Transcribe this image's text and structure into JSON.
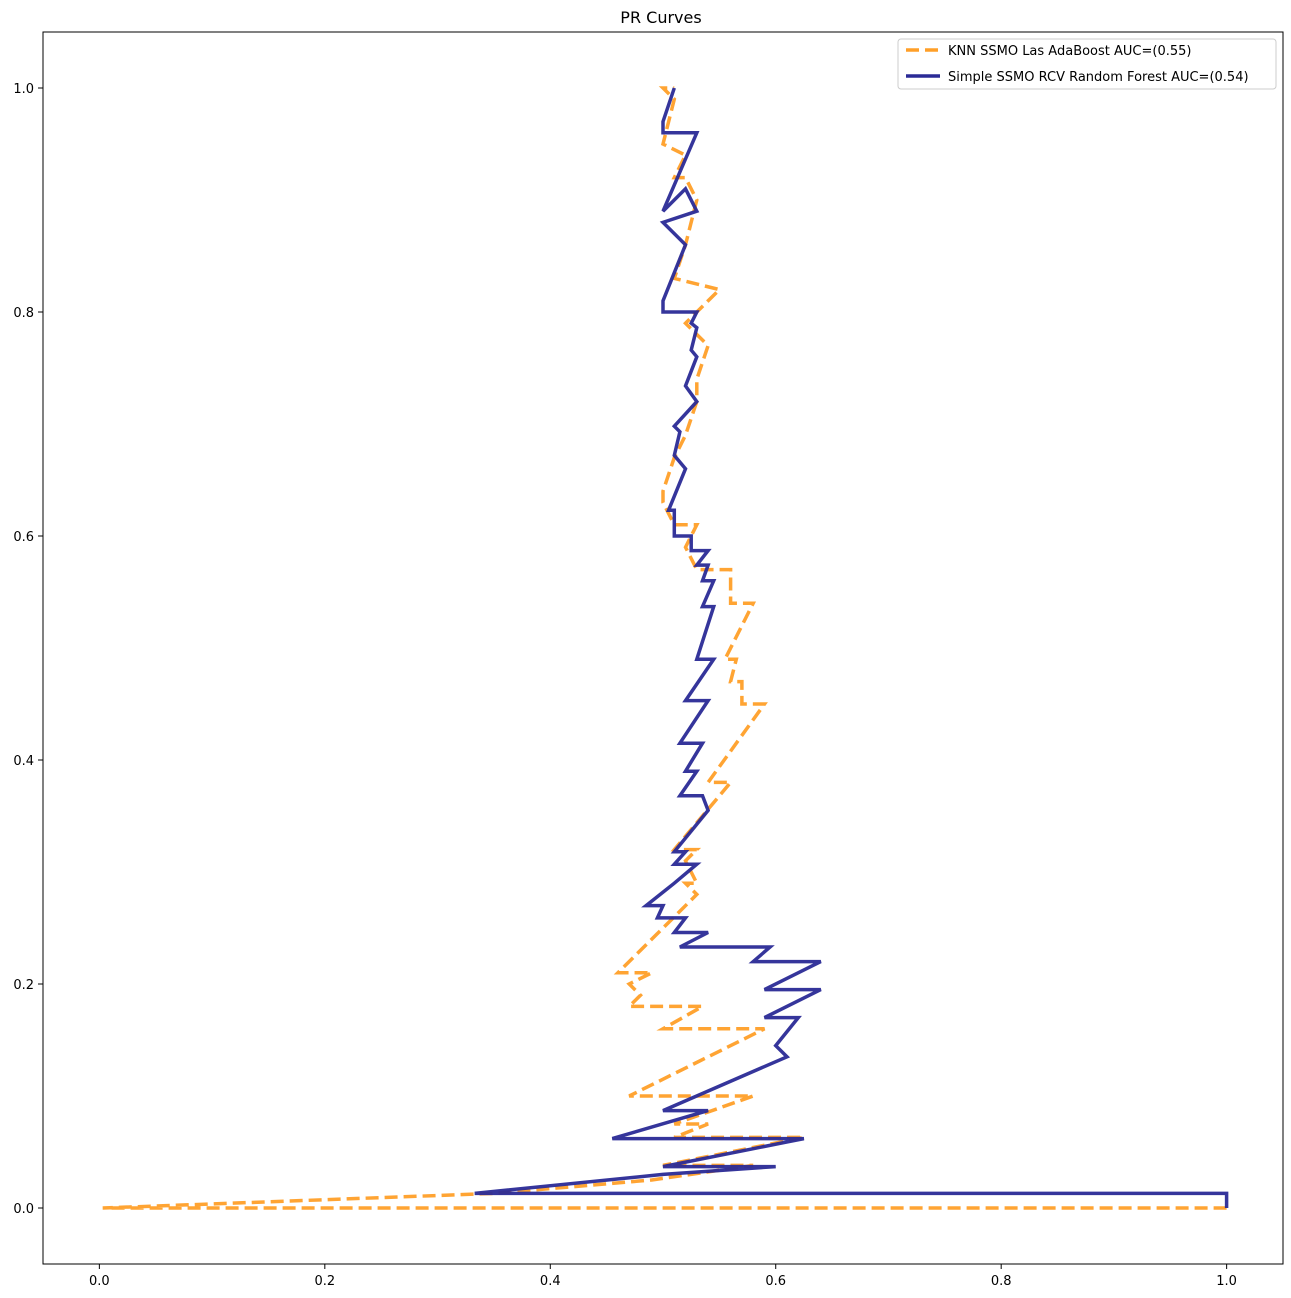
{
  "chart_data": {
    "type": "line",
    "title": "PR Curves",
    "xlabel": "",
    "ylabel": "",
    "xlim": [
      -0.05,
      1.05
    ],
    "ylim": [
      -0.05,
      1.05
    ],
    "xticks": [
      0.0,
      0.2,
      0.4,
      0.6,
      0.8,
      1.0
    ],
    "yticks": [
      0.0,
      0.2,
      0.4,
      0.6,
      0.8,
      1.0
    ],
    "xtick_labels": [
      "0.0",
      "0.2",
      "0.4",
      "0.6",
      "0.8",
      "1.0"
    ],
    "ytick_labels": [
      "0.0",
      "0.2",
      "0.4",
      "0.6",
      "0.8",
      "1.0"
    ],
    "grid": false,
    "legend": "top-right",
    "series": [
      {
        "name": "KNN SSMO Las AdaBoost AUC=(0.55)",
        "color": "#ff9f28",
        "style": "dashed",
        "points": [
          [
            1.0,
            0.0
          ],
          [
            0.003,
            0.0
          ],
          [
            0.35,
            0.013
          ],
          [
            0.49,
            0.025
          ],
          [
            0.58,
            0.038
          ],
          [
            0.5,
            0.038
          ],
          [
            0.625,
            0.063
          ],
          [
            0.51,
            0.063
          ],
          [
            0.54,
            0.075
          ],
          [
            0.51,
            0.075
          ],
          [
            0.58,
            0.1
          ],
          [
            0.47,
            0.1
          ],
          [
            0.59,
            0.16
          ],
          [
            0.5,
            0.16
          ],
          [
            0.535,
            0.18
          ],
          [
            0.47,
            0.18
          ],
          [
            0.48,
            0.19
          ],
          [
            0.47,
            0.2
          ],
          [
            0.49,
            0.21
          ],
          [
            0.46,
            0.21
          ],
          [
            0.51,
            0.26
          ],
          [
            0.53,
            0.28
          ],
          [
            0.52,
            0.29
          ],
          [
            0.53,
            0.29
          ],
          [
            0.52,
            0.31
          ],
          [
            0.53,
            0.32
          ],
          [
            0.51,
            0.32
          ],
          [
            0.56,
            0.38
          ],
          [
            0.54,
            0.38
          ],
          [
            0.59,
            0.45
          ],
          [
            0.57,
            0.45
          ],
          [
            0.57,
            0.47
          ],
          [
            0.56,
            0.47
          ],
          [
            0.565,
            0.49
          ],
          [
            0.555,
            0.49
          ],
          [
            0.58,
            0.54
          ],
          [
            0.56,
            0.54
          ],
          [
            0.56,
            0.57
          ],
          [
            0.53,
            0.57
          ],
          [
            0.52,
            0.59
          ],
          [
            0.53,
            0.61
          ],
          [
            0.51,
            0.61
          ],
          [
            0.5,
            0.63
          ],
          [
            0.5,
            0.64
          ],
          [
            0.51,
            0.67
          ],
          [
            0.52,
            0.69
          ],
          [
            0.53,
            0.72
          ],
          [
            0.53,
            0.74
          ],
          [
            0.54,
            0.77
          ],
          [
            0.52,
            0.79
          ],
          [
            0.55,
            0.82
          ],
          [
            0.51,
            0.83
          ],
          [
            0.52,
            0.86
          ],
          [
            0.53,
            0.9
          ],
          [
            0.52,
            0.92
          ],
          [
            0.51,
            0.92
          ],
          [
            0.52,
            0.94
          ],
          [
            0.5,
            0.95
          ],
          [
            0.51,
            0.99
          ],
          [
            0.5,
            1.0
          ],
          [
            0.51,
            1.0
          ]
        ]
      },
      {
        "name": "Simple SSMO RCV Random Forest AUC=(0.54)",
        "color": "#2a2a96",
        "style": "solid",
        "points": [
          [
            1.0,
            0.0
          ],
          [
            1.0,
            0.013
          ],
          [
            0.333,
            0.013
          ],
          [
            0.5,
            0.03
          ],
          [
            0.6,
            0.037
          ],
          [
            0.5,
            0.037
          ],
          [
            0.625,
            0.062
          ],
          [
            0.455,
            0.062
          ],
          [
            0.54,
            0.087
          ],
          [
            0.5,
            0.087
          ],
          [
            0.61,
            0.135
          ],
          [
            0.6,
            0.145
          ],
          [
            0.62,
            0.17
          ],
          [
            0.59,
            0.17
          ],
          [
            0.64,
            0.195
          ],
          [
            0.59,
            0.195
          ],
          [
            0.64,
            0.22
          ],
          [
            0.58,
            0.22
          ],
          [
            0.595,
            0.233
          ],
          [
            0.515,
            0.233
          ],
          [
            0.54,
            0.246
          ],
          [
            0.51,
            0.246
          ],
          [
            0.52,
            0.259
          ],
          [
            0.495,
            0.259
          ],
          [
            0.5,
            0.27
          ],
          [
            0.485,
            0.27
          ],
          [
            0.51,
            0.29
          ],
          [
            0.53,
            0.307
          ],
          [
            0.51,
            0.307
          ],
          [
            0.52,
            0.318
          ],
          [
            0.51,
            0.318
          ],
          [
            0.54,
            0.355
          ],
          [
            0.535,
            0.368
          ],
          [
            0.515,
            0.368
          ],
          [
            0.53,
            0.39
          ],
          [
            0.52,
            0.39
          ],
          [
            0.535,
            0.415
          ],
          [
            0.515,
            0.415
          ],
          [
            0.54,
            0.453
          ],
          [
            0.52,
            0.453
          ],
          [
            0.545,
            0.49
          ],
          [
            0.53,
            0.49
          ],
          [
            0.545,
            0.537
          ],
          [
            0.535,
            0.537
          ],
          [
            0.545,
            0.56
          ],
          [
            0.535,
            0.56
          ],
          [
            0.54,
            0.574
          ],
          [
            0.53,
            0.574
          ],
          [
            0.54,
            0.587
          ],
          [
            0.525,
            0.587
          ],
          [
            0.525,
            0.6
          ],
          [
            0.51,
            0.6
          ],
          [
            0.51,
            0.623
          ],
          [
            0.505,
            0.623
          ],
          [
            0.52,
            0.66
          ],
          [
            0.51,
            0.672
          ],
          [
            0.515,
            0.693
          ],
          [
            0.51,
            0.698
          ],
          [
            0.53,
            0.72
          ],
          [
            0.52,
            0.734
          ],
          [
            0.53,
            0.76
          ],
          [
            0.525,
            0.766
          ],
          [
            0.53,
            0.786
          ],
          [
            0.525,
            0.79
          ],
          [
            0.53,
            0.8
          ],
          [
            0.5,
            0.8
          ],
          [
            0.5,
            0.81
          ],
          [
            0.52,
            0.86
          ],
          [
            0.5,
            0.88
          ],
          [
            0.53,
            0.89
          ],
          [
            0.52,
            0.91
          ],
          [
            0.5,
            0.89
          ],
          [
            0.53,
            0.96
          ],
          [
            0.5,
            0.96
          ],
          [
            0.5,
            0.97
          ],
          [
            0.51,
            1.0
          ]
        ]
      }
    ]
  }
}
